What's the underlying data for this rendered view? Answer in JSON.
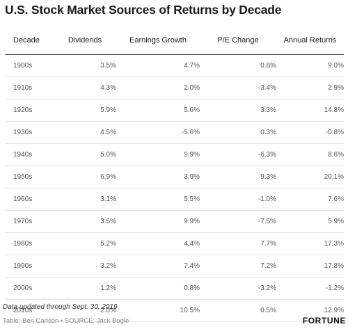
{
  "chart_data": {
    "type": "table",
    "title": "U.S. Stock Market Sources of Returns by Decade",
    "columns": [
      "Decade",
      "Dividends",
      "Earnings Growth",
      "P/E Change",
      "Annual Returns"
    ],
    "rows": [
      [
        "1900s",
        "3.5%",
        "4.7%",
        "0.8%",
        "9.0%"
      ],
      [
        "1910s",
        "4.3%",
        "2.0%",
        "-3.4%",
        "2.9%"
      ],
      [
        "1920s",
        "5.9%",
        "5.6%",
        "3.3%",
        "14.8%"
      ],
      [
        "1930s",
        "4.5%",
        "-5.6%",
        "0.3%",
        "-0.8%"
      ],
      [
        "1940s",
        "5.0%",
        "9.9%",
        "-6.3%",
        "8.6%"
      ],
      [
        "1950s",
        "6.9%",
        "3.9%",
        "9.3%",
        "20.1%"
      ],
      [
        "1960s",
        "3.1%",
        "5.5%",
        "-1.0%",
        "7.6%"
      ],
      [
        "1970s",
        "3.5%",
        "9.9%",
        "-7.5%",
        "5.9%"
      ],
      [
        "1980s",
        "5.2%",
        "4.4%",
        "7.7%",
        "17.3%"
      ],
      [
        "1990s",
        "3.2%",
        "7.4%",
        "7.2%",
        "17.8%"
      ],
      [
        "2000s",
        "1.2%",
        "0.8%",
        "-3.2%",
        "-1.2%"
      ],
      [
        "2010s",
        "2.0%",
        "10.5%",
        "0.5%",
        "12.9%"
      ]
    ]
  },
  "footer": {
    "note": "Data updated through Sept. 30, 2019",
    "credit": "Table: Ben Carlson • SOURCE: Jack Bogle",
    "brand": "FORTUNE"
  }
}
